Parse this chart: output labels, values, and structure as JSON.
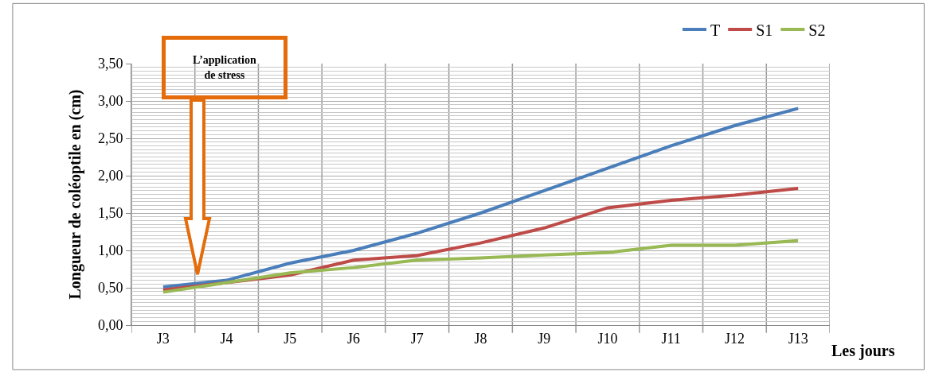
{
  "chart_data": {
    "type": "line",
    "categories": [
      "J3",
      "J4",
      "J5",
      "J6",
      "J7",
      "J8",
      "J9",
      "J10",
      "J11",
      "J12",
      "J13"
    ],
    "series": [
      {
        "name": "T",
        "color": "#4a7ebb",
        "values": [
          0.51,
          0.6,
          0.83,
          1.0,
          1.23,
          1.5,
          1.8,
          2.1,
          2.4,
          2.67,
          2.9
        ]
      },
      {
        "name": "S1",
        "color": "#be4b48",
        "values": [
          0.47,
          0.57,
          0.67,
          0.87,
          0.93,
          1.1,
          1.3,
          1.57,
          1.67,
          1.74,
          1.83
        ]
      },
      {
        "name": "S2",
        "color": "#98b954",
        "values": [
          0.44,
          0.57,
          0.7,
          0.77,
          0.87,
          0.9,
          0.94,
          0.97,
          1.07,
          1.07,
          1.13
        ]
      }
    ],
    "ylabel": "Longueur de coléoptile en (cm)",
    "xlabel": "Les jours",
    "ylim": [
      0,
      3.5
    ],
    "yticks": [
      {
        "value": 0,
        "label": "0,00"
      },
      {
        "value": 0.5,
        "label": "0,50"
      },
      {
        "value": 1,
        "label": "1,00"
      },
      {
        "value": 1.5,
        "label": "1,50"
      },
      {
        "value": 2,
        "label": "2,00"
      },
      {
        "value": 2.5,
        "label": "2,50"
      },
      {
        "value": 3,
        "label": "3,00"
      },
      {
        "value": 3.5,
        "label": "3,50"
      }
    ],
    "annotations": [
      "L’application\nde stress"
    ],
    "grid": true,
    "legend": "top right",
    "marker": "none",
    "line_style": "solid"
  }
}
